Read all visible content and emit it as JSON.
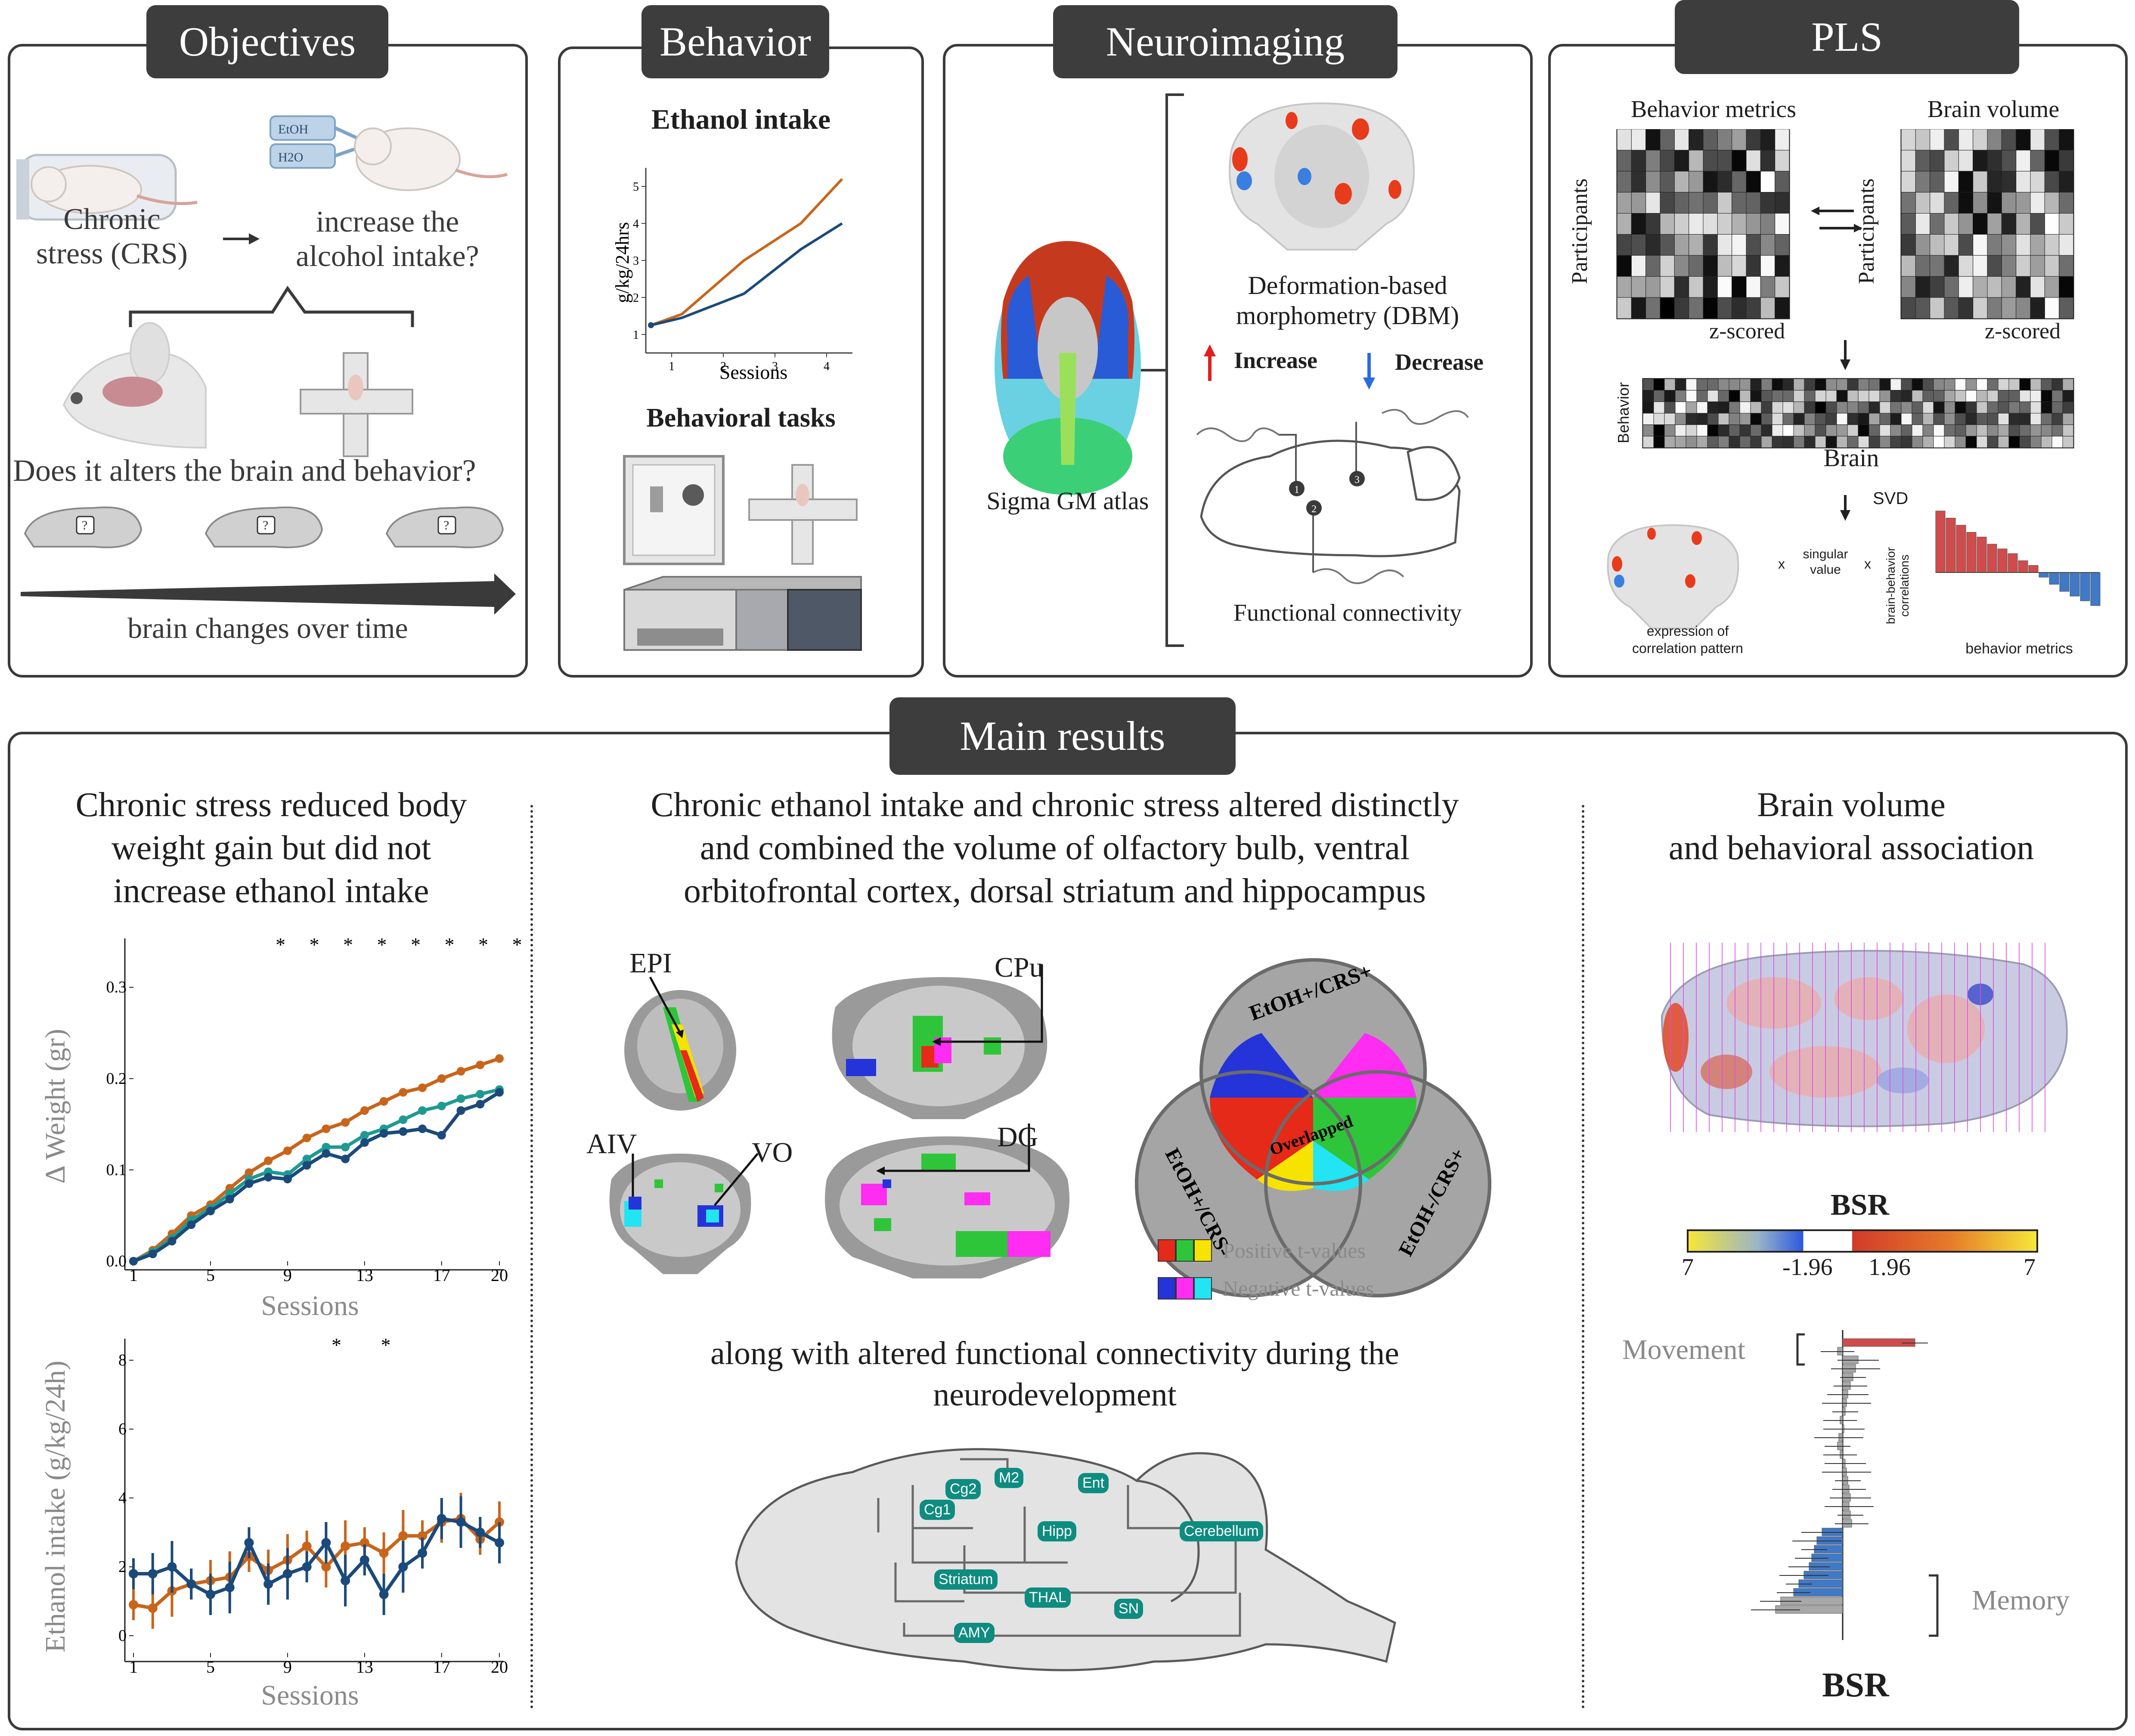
{
  "panels": {
    "objectives": {
      "tab": "Objectives",
      "chronic_stress": "Chronic\nstress (CRS)",
      "question_alcohol": "increase the\nalcohol intake?",
      "bottle_etoh": "EtOH",
      "bottle_h2o": "H2O",
      "question_brain": "Does it alters the brain and behavior?",
      "brain_q": "?",
      "timeline": "brain changes over time"
    },
    "behavior": {
      "tab": "Behavior",
      "ethanol_title": "Ethanol intake",
      "ylabel": "g/kg/24hrs",
      "xlabel": "Sessions",
      "yticks": [
        "5",
        "4",
        "3",
        "2",
        "1"
      ],
      "xticks": [
        "1",
        "2",
        "3",
        "4"
      ],
      "tasks_title": "Behavioral tasks"
    },
    "neuroimaging": {
      "tab": "Neuroimaging",
      "atlas": "Sigma GM atlas",
      "dbm": "Deformation-based\nmorphometry (DBM)",
      "increase": "Increase",
      "decrease": "Decrease",
      "fc": "Functional connectivity",
      "nodes": [
        "1",
        "2",
        "3"
      ]
    },
    "pls": {
      "tab": "PLS",
      "behavior_metrics": "Behavior metrics",
      "brain_volume": "Brain volume",
      "participants": "Participants",
      "zscored": "z-scored",
      "behavior": "Behavior",
      "brain": "Brain",
      "svd": "SVD",
      "expression": "expression of\ncorrelation pattern",
      "x": "x",
      "singular": "singular\nvalue",
      "brain_behavior": "brain-behavior\ncorrelations",
      "behavior_metrics_small": "behavior metrics"
    }
  },
  "main": {
    "tab": "Main results",
    "col1_title": "Chronic stress reduced body\nweight gain but did not\nincrease ethanol intake",
    "col2_title": "Chronic ethanol intake and chronic stress altered distinctly\nand combined the volume of olfactory bulb, ventral\norbitofrontal cortex, dorsal striatum and hippocampus",
    "col3_title": "Brain volume\nand behavioral association",
    "region_labels": [
      "EPI",
      "CPu",
      "AIV",
      "VO",
      "DG"
    ],
    "venn": {
      "top": "EtOH+/CRS+",
      "left": "EtOH+/CRS-",
      "right": "EtOH-/CRS+",
      "center": "Overlapped"
    },
    "legend_pos": "Positive t-values",
    "legend_neg": "Negative t-values",
    "fc_title": "along with altered functional connectivity during the\nneurodevelopment",
    "fc_nodes": [
      "M2",
      "Cg2",
      "Cg1",
      "Ent",
      "Hipp",
      "Cerebellum",
      "Striatum",
      "THAL",
      "SN",
      "AMY"
    ],
    "bsr_title": "BSR",
    "bsr_ticks": [
      "7",
      "-1.96",
      "1.96",
      "7"
    ],
    "movement": "Movement",
    "memory": "Memory",
    "bsr_xlabel": "BSR"
  },
  "colors": {
    "orange": "#c8651b",
    "navy": "#1b4a7a",
    "teal": "#1f9a93",
    "dark_tab": "#3d3d3d",
    "red_bar": "#d04b4b",
    "blue_bar": "#3f79c7",
    "chip": "#0e8c80"
  },
  "chart_data": [
    {
      "type": "line",
      "title": "Ethanol intake",
      "xlabel": "Sessions",
      "ylabel": "g/kg/24hrs",
      "x": [
        0.6,
        1.2,
        2.4,
        3.5,
        4.3
      ],
      "series": [
        {
          "values": [
            1.25,
            1.55,
            3.0,
            4.0,
            5.2
          ],
          "color": "#c8651b"
        },
        {
          "values": [
            1.25,
            1.45,
            2.1,
            3.3,
            4.0
          ],
          "color": "#1b4a7a"
        }
      ],
      "xlim": [
        0.5,
        4.5
      ],
      "ylim": [
        0.5,
        5.5
      ]
    },
    {
      "type": "line",
      "xlabel": "Sessions",
      "ylabel": "Δ Weight (gr)",
      "x": [
        1,
        2,
        3,
        4,
        5,
        6,
        7,
        8,
        9,
        10,
        11,
        12,
        13,
        14,
        15,
        16,
        17,
        18,
        19,
        20
      ],
      "xticks": [
        "1",
        "5",
        "9",
        "13",
        "17",
        "20"
      ],
      "yticks": [
        "0.0",
        "0.1",
        "0.2",
        "0.3"
      ],
      "ylim": [
        0,
        0.33
      ],
      "significance": "* * * * * * * * * * *",
      "series": [
        {
          "values": [
            0.0,
            0.012,
            0.03,
            0.05,
            0.062,
            0.08,
            0.097,
            0.11,
            0.121,
            0.135,
            0.145,
            0.152,
            0.165,
            0.175,
            0.185,
            0.19,
            0.2,
            0.208,
            0.215,
            0.222
          ],
          "color": "#c8651b"
        },
        {
          "values": [
            0.0,
            0.01,
            0.025,
            0.045,
            0.058,
            0.074,
            0.09,
            0.098,
            0.095,
            0.112,
            0.125,
            0.125,
            0.138,
            0.145,
            0.155,
            0.165,
            0.17,
            0.178,
            0.183,
            0.188
          ],
          "color": "#1f9a93"
        },
        {
          "values": [
            0.0,
            0.008,
            0.022,
            0.04,
            0.055,
            0.068,
            0.085,
            0.092,
            0.09,
            0.105,
            0.118,
            0.112,
            0.13,
            0.14,
            0.142,
            0.145,
            0.138,
            0.165,
            0.172,
            0.185
          ],
          "color": "#1b4a7a"
        }
      ]
    },
    {
      "type": "line",
      "xlabel": "Sessions",
      "ylabel": "Ethanol intake (g/kg/24h)",
      "x": [
        1,
        2,
        3,
        4,
        5,
        6,
        7,
        8,
        9,
        10,
        11,
        12,
        13,
        14,
        15,
        16,
        17,
        18,
        19,
        20
      ],
      "xticks": [
        "1",
        "5",
        "9",
        "13",
        "17",
        "20"
      ],
      "yticks": [
        "0",
        "2",
        "4",
        "6",
        "8"
      ],
      "ylim": [
        -0.5,
        8.5
      ],
      "significance": "* *",
      "series": [
        {
          "values": [
            0.9,
            0.8,
            1.3,
            1.5,
            1.6,
            1.7,
            2.3,
            1.9,
            2.2,
            2.6,
            2.0,
            2.6,
            2.7,
            2.4,
            2.9,
            2.9,
            3.3,
            3.4,
            2.8,
            3.3
          ],
          "color": "#c8651b"
        },
        {
          "values": [
            1.8,
            1.8,
            2.0,
            1.5,
            1.2,
            1.4,
            2.7,
            1.5,
            1.8,
            2.0,
            2.7,
            1.6,
            2.2,
            1.2,
            2.0,
            2.4,
            3.4,
            3.3,
            3.0,
            2.7
          ],
          "color": "#1b4a7a"
        }
      ]
    },
    {
      "type": "bar",
      "orientation": "horizontal",
      "xlabel": "BSR",
      "values": [
        2.8,
        -0.2,
        0.6,
        0.5,
        0.4,
        0.3,
        0.2,
        0.15,
        0.1,
        -0.1,
        0.05,
        -0.15,
        -0.2,
        -0.1,
        0.1,
        0.15,
        0.2,
        0.25,
        0.3,
        0.25,
        0.3,
        0.35,
        -0.8,
        -1.0,
        -1.1,
        -1.2,
        -1.3,
        -1.5,
        -1.7,
        -1.9,
        -2.4,
        -2.6
      ],
      "colors_note": "first bar red (movement), lower bars blue (memory), rest gray"
    }
  ]
}
